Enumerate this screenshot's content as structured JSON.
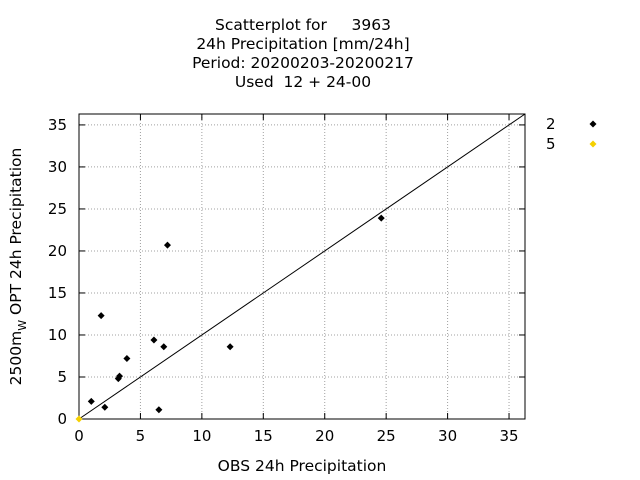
{
  "chart_data": {
    "type": "scatter",
    "title_lines": [
      "Scatterplot for     3963",
      "24h Precipitation [mm/24h]",
      "Period: 20200203-20200217",
      "Used  12 + 24-00"
    ],
    "xlabel": "OBS 24h Precipitation",
    "ylabel_main": "2500m",
    "ylabel_sub": "W",
    "ylabel_rest": " OPT 24h Precipitation",
    "xlim": [
      0,
      36.3
    ],
    "ylim": [
      0,
      36.3
    ],
    "xticks": [
      0,
      5,
      10,
      15,
      20,
      25,
      30,
      35
    ],
    "yticks": [
      0,
      5,
      10,
      15,
      20,
      25,
      30,
      35
    ],
    "grid": true,
    "legend_position": "right",
    "series": [
      {
        "name": "2",
        "color": "#000000",
        "marker": "diamond",
        "points": [
          [
            1.0,
            2.1
          ],
          [
            1.8,
            12.3
          ],
          [
            2.1,
            1.4
          ],
          [
            3.2,
            4.8
          ],
          [
            3.3,
            5.1
          ],
          [
            3.9,
            7.2
          ],
          [
            6.1,
            9.4
          ],
          [
            6.5,
            1.1
          ],
          [
            6.9,
            8.6
          ],
          [
            7.2,
            20.7
          ],
          [
            12.3,
            8.6
          ],
          [
            24.6,
            23.9
          ]
        ]
      },
      {
        "name": "5",
        "color": "#f5d000",
        "marker": "diamond",
        "points": [
          [
            0.0,
            0.0
          ]
        ]
      }
    ],
    "reference_line": "y=x"
  }
}
